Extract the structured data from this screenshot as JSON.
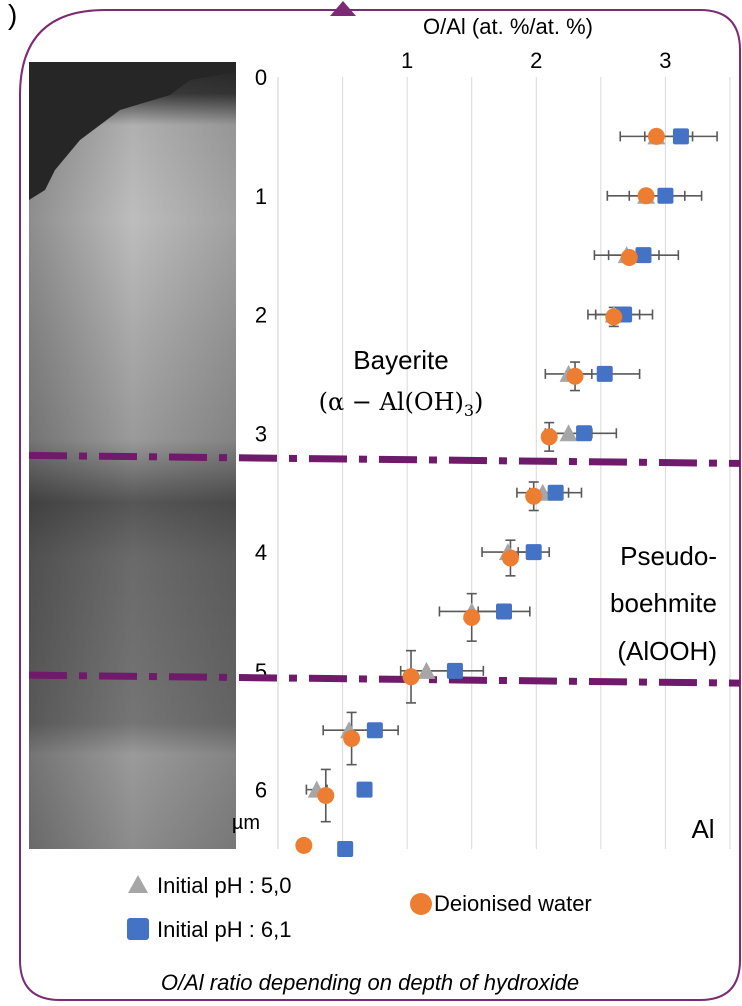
{
  "panel_label": ")",
  "caption": "O/Al ratio depending on depth of hydroxide",
  "colors": {
    "frame": "#7b2a73",
    "boundary": "#6f1a6b",
    "grid": "#d9d9d9",
    "series_ph50": "#a6a6a6",
    "series_ph61": "#4472c4",
    "series_water": "#ed7d31",
    "errorbar": "#595959"
  },
  "chart_data": {
    "type": "scatter",
    "title": "O/Al (at. %/at. %)",
    "xlabel": "O/Al (at. %/at. %)",
    "ylabel": "µm",
    "x_axis_position": "top",
    "y_axis_inverted": true,
    "xlim": [
      0.0,
      3.5
    ],
    "ylim": [
      0,
      6.5
    ],
    "x_ticks": [
      1,
      2,
      3
    ],
    "y_ticks": [
      0,
      1,
      2,
      3,
      4,
      5,
      6
    ],
    "grid": "vertical",
    "legend": "bottom",
    "series": [
      {
        "name": "Initial pH : 5,0",
        "marker": "triangle",
        "color": "#a6a6a6",
        "points": [
          {
            "x": 2.93,
            "y": 0.5,
            "xerr": 0.28
          },
          {
            "x": 2.85,
            "y": 1.0,
            "xerr": 0.3
          },
          {
            "x": 2.7,
            "y": 1.5,
            "xerr": 0.25
          },
          {
            "x": 2.6,
            "y": 2.0,
            "xerr": 0.2
          },
          {
            "x": 2.25,
            "y": 2.5,
            "xerr": 0.18
          },
          {
            "x": 2.25,
            "y": 3.0,
            "xerr": 0.18
          },
          {
            "x": 2.05,
            "y": 3.5,
            "xerr": 0.2
          },
          {
            "x": 1.78,
            "y": 4.0,
            "xerr": 0.2
          },
          {
            "x": 1.5,
            "y": 4.5,
            "xerr": 0.25
          },
          {
            "x": 1.15,
            "y": 5.0,
            "xerr": 0.2
          },
          {
            "x": 0.55,
            "y": 5.5,
            "xerr": 0.2
          },
          {
            "x": 0.3,
            "y": 6.0,
            "xerr": 0.08
          }
        ]
      },
      {
        "name": "Initial pH : 6,1",
        "marker": "square",
        "color": "#4472c4",
        "points": [
          {
            "x": 3.12,
            "y": 0.5,
            "xerr": 0.28
          },
          {
            "x": 3.0,
            "y": 1.0,
            "xerr": 0.28
          },
          {
            "x": 2.83,
            "y": 1.5,
            "xerr": 0.27
          },
          {
            "x": 2.68,
            "y": 2.0,
            "xerr": 0.22
          },
          {
            "x": 2.53,
            "y": 2.5,
            "xerr": 0.27
          },
          {
            "x": 2.37,
            "y": 3.0,
            "xerr": 0.25
          },
          {
            "x": 2.15,
            "y": 3.5,
            "xerr": 0.2
          },
          {
            "x": 1.98,
            "y": 4.0,
            "xerr": 0.12
          },
          {
            "x": 1.75,
            "y": 4.5,
            "xerr": 0.2
          },
          {
            "x": 1.37,
            "y": 5.0,
            "xerr": 0.22
          },
          {
            "x": 0.75,
            "y": 5.5,
            "xerr": 0.18
          },
          {
            "x": 0.67,
            "y": 6.0,
            "xerr": 0.05
          },
          {
            "x": 0.52,
            "y": 6.5,
            "xerr": 0.0
          }
        ]
      },
      {
        "name": "Deionised water",
        "marker": "circle",
        "color": "#ed7d31",
        "points": [
          {
            "x": 2.93,
            "y": 0.5,
            "yerr": 0.0
          },
          {
            "x": 2.85,
            "y": 1.0,
            "yerr": 0.0
          },
          {
            "x": 2.72,
            "y": 1.52,
            "yerr": 0.0
          },
          {
            "x": 2.6,
            "y": 2.02,
            "yerr": 0.08
          },
          {
            "x": 2.3,
            "y": 2.52,
            "yerr": 0.12
          },
          {
            "x": 2.1,
            "y": 3.03,
            "yerr": 0.12
          },
          {
            "x": 1.98,
            "y": 3.53,
            "yerr": 0.12
          },
          {
            "x": 1.8,
            "y": 4.05,
            "yerr": 0.15
          },
          {
            "x": 1.5,
            "y": 4.55,
            "yerr": 0.2
          },
          {
            "x": 1.03,
            "y": 5.05,
            "yerr": 0.22
          },
          {
            "x": 0.57,
            "y": 5.57,
            "yerr": 0.22
          },
          {
            "x": 0.37,
            "y": 6.05,
            "yerr": 0.22
          },
          {
            "x": 0.2,
            "y": 6.47,
            "yerr": 0.05
          }
        ]
      }
    ],
    "boundaries": [
      3.22,
      5.07
    ],
    "annotations": {
      "bayerite_name": "Bayerite",
      "bayerite_formula_prefix": "(α − Al(OH)",
      "bayerite_formula_sub": "3",
      "bayerite_formula_suffix": ")",
      "pseudo_line1": "Pseudo-",
      "pseudo_line2": "boehmite",
      "pseudo_line3": "(AlOOH)",
      "al_label": "Al"
    }
  }
}
